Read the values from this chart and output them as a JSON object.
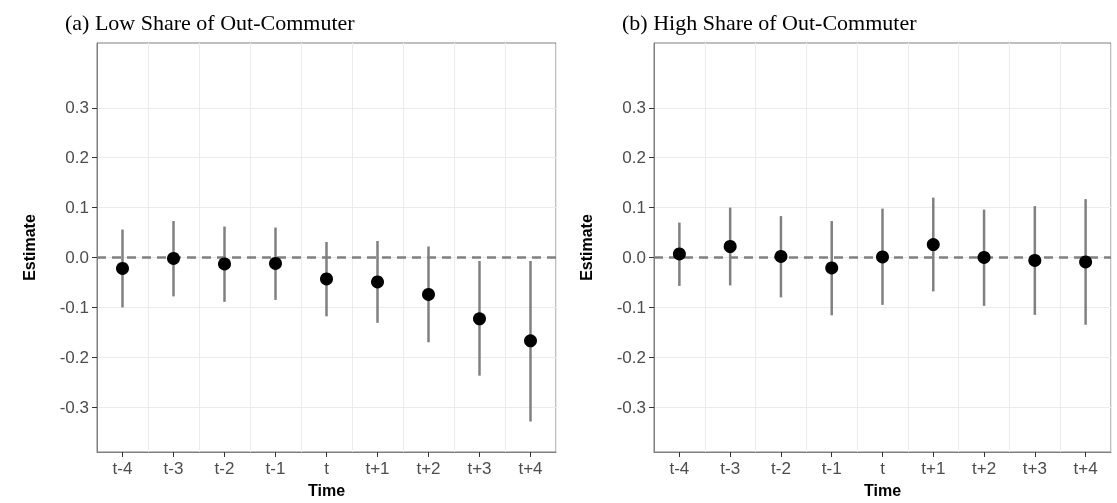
{
  "chart_data": [
    {
      "type": "scatter",
      "title": "(a) Low Share of Out-Commuter",
      "xlabel": "Time",
      "ylabel": "Estimate",
      "categories": [
        "t-4",
        "t-3",
        "t-2",
        "t-1",
        "t",
        "t+1",
        "t+2",
        "t+3",
        "t+4"
      ],
      "series": [
        {
          "color": "#000000",
          "values": [
            -0.022,
            -0.002,
            -0.013,
            -0.012,
            -0.043,
            -0.049,
            -0.074,
            -0.123,
            -0.167
          ],
          "errors": [
            [
              -0.1,
              0.056
            ],
            [
              -0.078,
              0.073
            ],
            [
              -0.089,
              0.062
            ],
            [
              -0.085,
              0.06
            ],
            [
              -0.118,
              0.031
            ],
            [
              -0.131,
              0.033
            ],
            [
              -0.17,
              0.022
            ],
            [
              -0.237,
              -0.007
            ],
            [
              -0.329,
              -0.007
            ]
          ]
        }
      ],
      "ylim": [
        -0.39,
        0.43
      ],
      "yticks": [
        {
          "value": -0.3,
          "label": "-0.3"
        },
        {
          "value": -0.2,
          "label": "-0.2"
        },
        {
          "value": -0.1,
          "label": "-0.1"
        },
        {
          "value": 0,
          "label": "0.0"
        },
        {
          "value": 0.1,
          "label": "0.1"
        },
        {
          "value": 0.2,
          "label": "0.2"
        },
        {
          "value": 0.3,
          "label": "0.3"
        }
      ],
      "grid": true,
      "legend": false,
      "marker": "circle",
      "ref_lines": [
        {
          "axis": "y",
          "value": 0,
          "color": "#808080",
          "line_style": "dashed"
        }
      ]
    },
    {
      "type": "scatter",
      "title": "(b) High Share of Out-Commuter",
      "xlabel": "Time",
      "ylabel": "Estimate",
      "categories": [
        "t-4",
        "t-3",
        "t-2",
        "t-1",
        "t",
        "t+1",
        "t+2",
        "t+3",
        "t+4"
      ],
      "series": [
        {
          "color": "#000000",
          "values": [
            0.007,
            0.022,
            0.002,
            -0.021,
            0.001,
            0.026,
            0.0,
            -0.006,
            -0.009
          ],
          "errors": [
            [
              -0.057,
              0.07
            ],
            [
              -0.056,
              0.1
            ],
            [
              -0.08,
              0.083
            ],
            [
              -0.116,
              0.073
            ],
            [
              -0.095,
              0.098
            ],
            [
              -0.068,
              0.12
            ],
            [
              -0.097,
              0.096
            ],
            [
              -0.115,
              0.103
            ],
            [
              -0.135,
              0.117
            ]
          ]
        }
      ],
      "ylim": [
        -0.39,
        0.43
      ],
      "yticks": [
        {
          "value": -0.3,
          "label": "-0.3"
        },
        {
          "value": -0.2,
          "label": "-0.2"
        },
        {
          "value": -0.1,
          "label": "-0.1"
        },
        {
          "value": 0,
          "label": "0.0"
        },
        {
          "value": 0.1,
          "label": "0.1"
        },
        {
          "value": 0.2,
          "label": "0.2"
        },
        {
          "value": 0.3,
          "label": "0.3"
        }
      ],
      "grid": true,
      "legend": false,
      "marker": "circle",
      "ref_lines": [
        {
          "axis": "y",
          "value": 0,
          "color": "#808080",
          "line_style": "dashed"
        }
      ]
    }
  ]
}
